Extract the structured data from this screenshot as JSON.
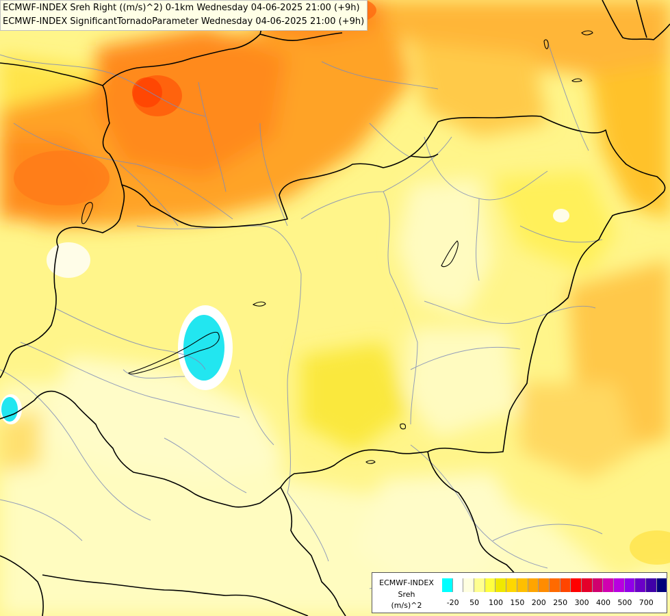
{
  "header": {
    "line1": "ECMWF-INDEX Sreh Right ((m/s)^2) 0-1km Wednesday 04-06-2025 21:00 (+9h)",
    "line2": "ECMWF-INDEX SignificantTornadoParameter Wednesday 04-06-2025 21:00 (+9h)"
  },
  "legend": {
    "title": "ECMWF-INDEX",
    "variable": "Sreh",
    "unit": "(m/s)^2",
    "colors": [
      "#00ffff",
      "#ffffff",
      "#ffffe0",
      "#ffff90",
      "#ffff40",
      "#f0e800",
      "#ffd700",
      "#ffbf00",
      "#ffa500",
      "#ff8c00",
      "#ff6a00",
      "#ff4500",
      "#ff0000",
      "#e4002a",
      "#d0006e",
      "#d000b0",
      "#b800e0",
      "#9000e8",
      "#6a00c8",
      "#4000a8",
      "#00007a"
    ],
    "ticks": [
      "-20",
      "50",
      "100",
      "150",
      "200",
      "250",
      "300",
      "400",
      "500",
      "700"
    ]
  }
}
